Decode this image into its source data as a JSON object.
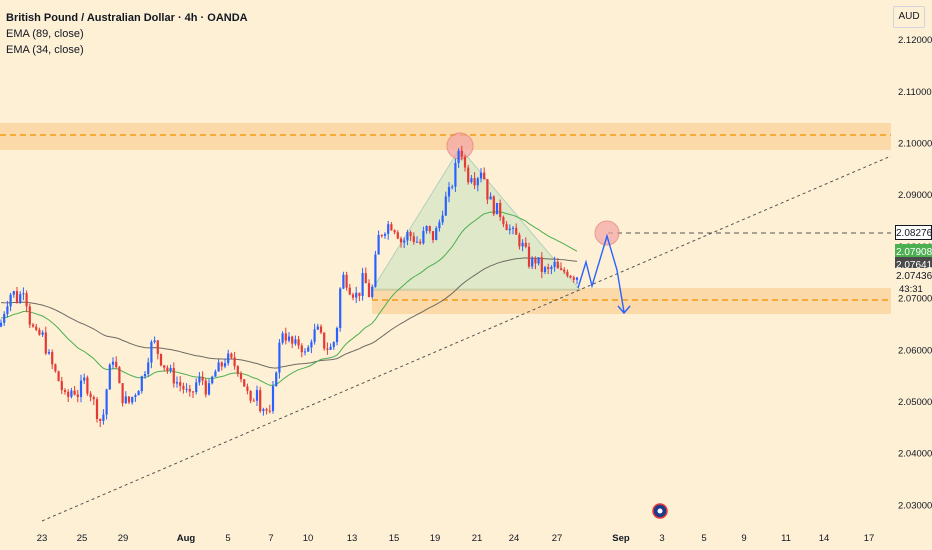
{
  "legend": {
    "title": "British Pound / Australian Dollar · 4h · OANDA",
    "ema89": "EMA (89, close)",
    "ema34": "EMA (34, close)"
  },
  "currency": "AUD",
  "price_tags": [
    {
      "value": "2.08276",
      "bg": "#ffffff",
      "color": "#131722",
      "border": "#131722"
    },
    {
      "value": "2.07908",
      "bg": "#4caf50",
      "color": "#ffffff",
      "border": "#4caf50"
    },
    {
      "value": "2.07641",
      "bg": "#4a4a4a",
      "color": "#ffffff",
      "border": "#4a4a4a"
    },
    {
      "value": "2.07436",
      "bg": "#fdf0d5",
      "color": "#131722",
      "border": "#fdf0d5"
    }
  ],
  "countdown": "43:31",
  "chart_data": {
    "type": "candlestick",
    "title": "British Pound / Australian Dollar · 4h · OANDA",
    "y_axis": {
      "min": 2.027,
      "max": 2.1285,
      "ticks": [
        "2.12000",
        "2.11000",
        "2.10000",
        "2.09000",
        "2.08000",
        "2.07000",
        "2.06000",
        "2.05000",
        "2.04000",
        "2.03000"
      ]
    },
    "x_axis": {
      "ticks": [
        "23",
        "25",
        "29",
        "Aug",
        "5",
        "7",
        "10",
        "13",
        "15",
        "19",
        "21",
        "24",
        "27",
        "Sep",
        "3",
        "5",
        "9",
        "11",
        "14",
        "17"
      ],
      "bold": [
        "Aug",
        "Sep"
      ]
    },
    "series": [
      {
        "name": "EMA (89, close)",
        "color": "#6e6a62"
      },
      {
        "name": "EMA (34, close)",
        "color": "#4caf50"
      }
    ],
    "candles_path": [
      [
        0,
        2.0645
      ],
      [
        6,
        2.069
      ],
      [
        12,
        2.0715
      ],
      [
        18,
        2.0695
      ],
      [
        24,
        2.0725
      ],
      [
        30,
        2.0655
      ],
      [
        36,
        2.0625
      ],
      [
        42,
        2.063
      ],
      [
        48,
        2.059
      ],
      [
        54,
        2.056
      ],
      [
        60,
        2.0535
      ],
      [
        66,
        2.05
      ],
      [
        72,
        2.0525
      ],
      [
        78,
        2.0515
      ],
      [
        84,
        2.054
      ],
      [
        90,
        2.052
      ],
      [
        96,
        2.0485
      ],
      [
        102,
        2.0455
      ],
      [
        108,
        2.0545
      ],
      [
        114,
        2.0595
      ],
      [
        118,
        2.0535
      ],
      [
        122,
        2.051
      ],
      [
        128,
        2.0495
      ],
      [
        134,
        2.0515
      ],
      [
        140,
        2.0535
      ],
      [
        146,
        2.057
      ],
      [
        150,
        2.0605
      ],
      [
        154,
        2.0615
      ],
      [
        160,
        2.0585
      ],
      [
        166,
        2.0565
      ],
      [
        172,
        2.055
      ],
      [
        178,
        2.0535
      ],
      [
        184,
        2.0525
      ],
      [
        190,
        2.0505
      ],
      [
        196,
        2.0535
      ],
      [
        202,
        2.0545
      ],
      [
        208,
        2.0515
      ],
      [
        214,
        2.0555
      ],
      [
        220,
        2.0565
      ],
      [
        226,
        2.0585
      ],
      [
        232,
        2.0575
      ],
      [
        238,
        2.0565
      ],
      [
        244,
        2.0535
      ],
      [
        248,
        2.051
      ],
      [
        252,
        2.048
      ],
      [
        256,
        2.0545
      ],
      [
        260,
        2.0495
      ],
      [
        266,
        2.0485
      ],
      [
        270,
        2.047
      ],
      [
        276,
        2.0565
      ],
      [
        282,
        2.064
      ],
      [
        288,
        2.062
      ],
      [
        294,
        2.0605
      ],
      [
        300,
        2.0615
      ],
      [
        306,
        2.0585
      ],
      [
        312,
        2.063
      ],
      [
        318,
        2.0635
      ],
      [
        324,
        2.061
      ],
      [
        330,
        2.06
      ],
      [
        336,
        2.0625
      ],
      [
        340,
        2.0715
      ],
      [
        344,
        2.0745
      ],
      [
        350,
        2.072
      ],
      [
        356,
        2.0705
      ],
      [
        360,
        2.0715
      ],
      [
        364,
        2.0745
      ],
      [
        368,
        2.0705
      ],
      [
        372,
        2.0715
      ],
      [
        378,
        2.0815
      ],
      [
        384,
        2.0835
      ],
      [
        390,
        2.0845
      ],
      [
        396,
        2.0835
      ],
      [
        402,
        2.0805
      ],
      [
        408,
        2.0825
      ],
      [
        414,
        2.0815
      ],
      [
        420,
        2.0805
      ],
      [
        426,
        2.0835
      ],
      [
        432,
        2.0815
      ],
      [
        438,
        2.0835
      ],
      [
        444,
        2.0885
      ],
      [
        450,
        2.0905
      ],
      [
        456,
        2.0955
      ],
      [
        460,
        2.1005
      ],
      [
        464,
        2.0955
      ],
      [
        468,
        2.0935
      ],
      [
        472,
        2.0945
      ],
      [
        476,
        2.0925
      ],
      [
        480,
        2.0955
      ],
      [
        484,
        2.0935
      ],
      [
        488,
        2.0895
      ],
      [
        494,
        2.0875
      ],
      [
        500,
        2.0865
      ],
      [
        506,
        2.0845
      ],
      [
        512,
        2.0825
      ],
      [
        518,
        2.0815
      ],
      [
        524,
        2.0795
      ],
      [
        530,
        2.0765
      ],
      [
        536,
        2.0775
      ],
      [
        542,
        2.0755
      ],
      [
        548,
        2.075
      ],
      [
        554,
        2.0765
      ],
      [
        560,
        2.0745
      ],
      [
        566,
        2.0755
      ],
      [
        572,
        2.0745
      ],
      [
        578,
        2.0744
      ]
    ]
  }
}
